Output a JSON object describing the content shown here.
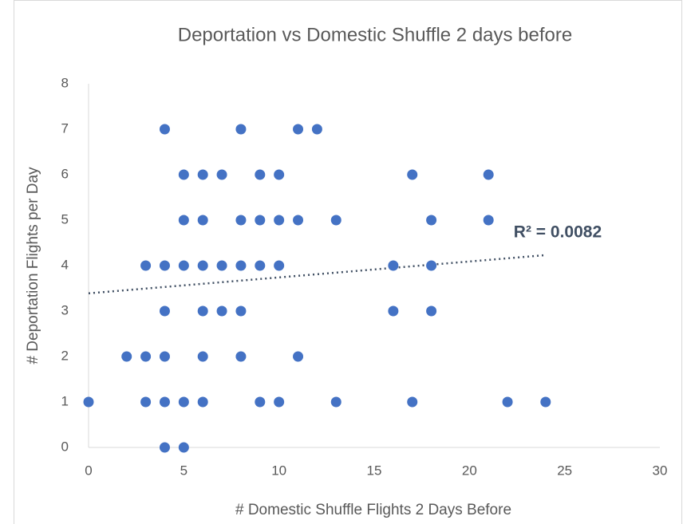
{
  "chart_data": {
    "type": "scatter",
    "title": "Deportation vs Domestic Shuffle 2 days before",
    "x_label": "# Domestic Shuffle Flights 2 Days Before",
    "y_label": "# Deportation Flights per Day",
    "color": "#4472c4",
    "x": [
      4,
      8,
      11,
      12,
      5,
      6,
      7,
      9,
      10,
      17,
      21,
      5,
      6,
      8,
      9,
      10,
      11,
      13,
      18,
      21,
      3,
      4,
      5,
      6,
      7,
      8,
      9,
      10,
      16,
      18,
      4,
      6,
      7,
      8,
      16,
      18,
      2,
      3,
      4,
      6,
      8,
      11,
      0,
      3,
      4,
      5,
      6,
      9,
      10,
      13,
      17,
      22,
      24,
      4,
      5
    ],
    "values": [
      7,
      7,
      7,
      7,
      6,
      6,
      6,
      6,
      6,
      6,
      6,
      5,
      5,
      5,
      5,
      5,
      5,
      5,
      5,
      5,
      4,
      4,
      4,
      4,
      4,
      4,
      4,
      4,
      4,
      4,
      3,
      3,
      3,
      3,
      3,
      3,
      2,
      2,
      2,
      2,
      2,
      2,
      1,
      1,
      1,
      1,
      1,
      1,
      1,
      1,
      1,
      1,
      1,
      0,
      0
    ],
    "trendline": {
      "x": [
        0,
        24
      ],
      "values": [
        3.39,
        4.23
      ],
      "color": "#404f63",
      "label": "R² = 0.0082"
    },
    "xlim": [
      0,
      30
    ],
    "xticks": [
      0,
      5,
      10,
      15,
      20,
      25,
      30
    ],
    "ylim": [
      0,
      8
    ],
    "yticks": [
      0,
      1,
      2,
      3,
      4,
      5,
      6,
      7,
      8
    ],
    "grid": false
  }
}
